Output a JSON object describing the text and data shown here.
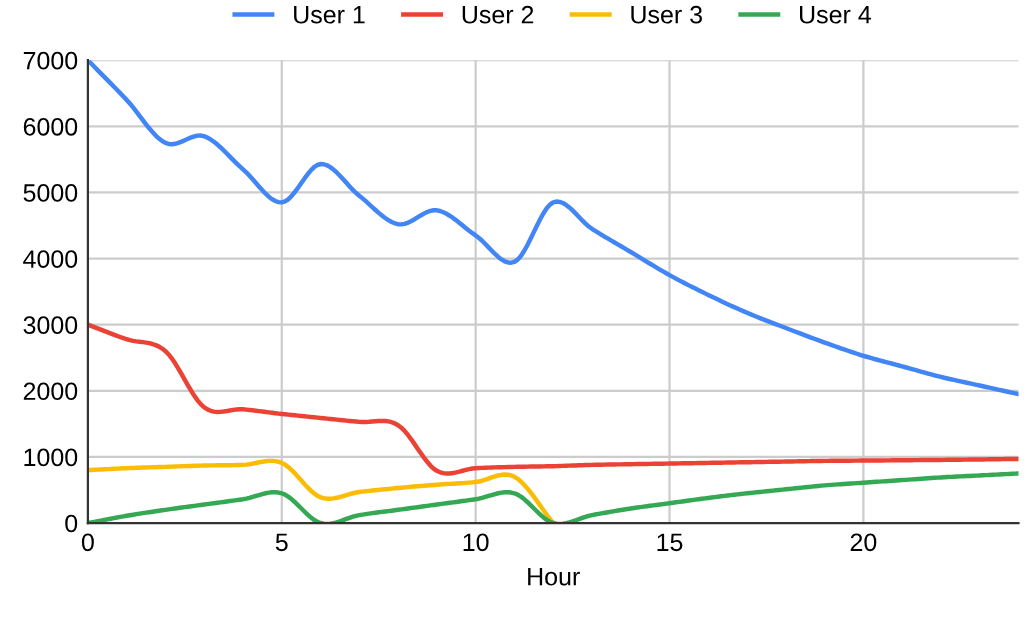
{
  "chart_data": {
    "type": "line",
    "xlabel": "Hour",
    "x": [
      0,
      1,
      2,
      3,
      4,
      5,
      6,
      7,
      8,
      9,
      10,
      11,
      12,
      13,
      14,
      15,
      16,
      17,
      18,
      19,
      20,
      21,
      22,
      23,
      24
    ],
    "series": [
      {
        "name": "User 1",
        "color": "#4285f4",
        "values": [
          7000,
          6400,
          5750,
          5850,
          5350,
          4850,
          5430,
          4950,
          4520,
          4730,
          4350,
          3950,
          4850,
          4450,
          4100,
          3750,
          3450,
          3180,
          2950,
          2730,
          2530,
          2370,
          2210,
          2080,
          1950
        ]
      },
      {
        "name": "User 2",
        "color": "#ea4335",
        "values": [
          3000,
          2780,
          2600,
          1750,
          1720,
          1650,
          1590,
          1530,
          1480,
          790,
          830,
          850,
          860,
          880,
          890,
          900,
          910,
          920,
          930,
          940,
          945,
          950,
          955,
          962,
          970
        ]
      },
      {
        "name": "User 3",
        "color": "#fbbc04",
        "values": [
          800,
          830,
          850,
          870,
          880,
          910,
          390,
          470,
          530,
          580,
          620,
          700,
          0,
          null,
          null,
          null,
          null,
          null,
          null,
          null,
          null,
          null,
          null,
          null,
          null
        ]
      },
      {
        "name": "User 4",
        "color": "#34a853",
        "values": [
          0,
          110,
          200,
          280,
          360,
          450,
          0,
          120,
          200,
          280,
          360,
          450,
          0,
          120,
          220,
          300,
          380,
          450,
          510,
          570,
          610,
          650,
          690,
          720,
          750
        ]
      }
    ],
    "xlim": [
      0,
      24
    ],
    "xticks": [
      0,
      5,
      10,
      15,
      20
    ],
    "ylim": [
      0,
      7000
    ],
    "yticks": [
      0,
      1000,
      2000,
      3000,
      4000,
      5000,
      6000,
      7000
    ],
    "grid": true,
    "legend": "top",
    "marker": "none",
    "line_style": "solid"
  }
}
